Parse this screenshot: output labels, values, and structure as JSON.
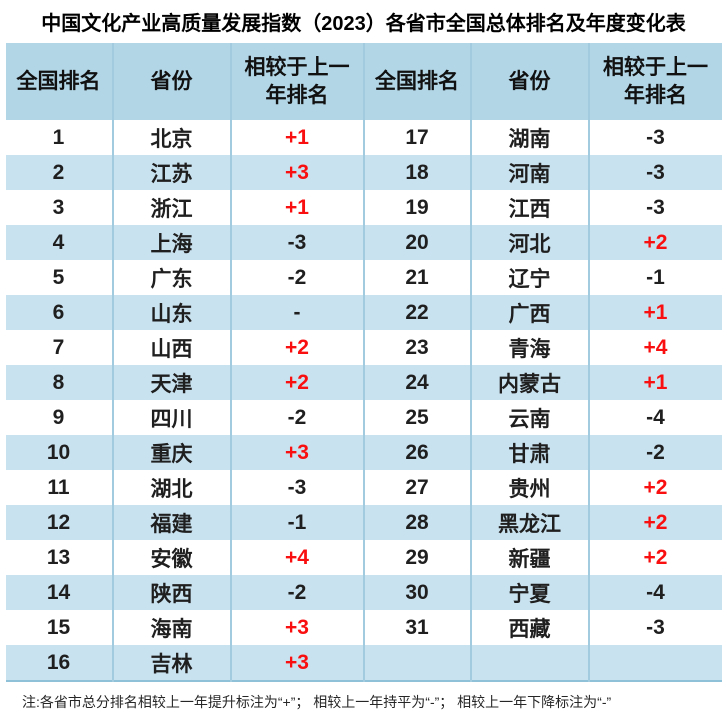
{
  "title": "中国文化产业高质量发展指数（2023）各省市全国总体排名及年度变化表",
  "note": "注:各省市总分排名相较上一年提升标注为“+”； 相较上一年持平为“-”； 相较上一年下降标注为“-”",
  "colors": {
    "header_bg": "#b2d6e6",
    "row_alt_bg": "#c9e2ef",
    "divider": "#a3cbdf",
    "divider_strong": "#8fc2d8",
    "positive_change": "#f90f0f",
    "text": "#1f1f1f"
  },
  "chart_data": {
    "type": "table",
    "title": "中国文化产业高质量发展指数（2023）各省市全国总体排名及年度变化表",
    "columns": [
      "全国排名",
      "省份",
      "相较于上一年排名"
    ],
    "layout": "two-column-split, ranks 1-16 left, ranks 17-31 right, alternating row shading",
    "rows": [
      [
        "1",
        "北京",
        "+1"
      ],
      [
        "2",
        "江苏",
        "+3"
      ],
      [
        "3",
        "浙江",
        "+1"
      ],
      [
        "4",
        "上海",
        "-3"
      ],
      [
        "5",
        "广东",
        "-2"
      ],
      [
        "6",
        "山东",
        "-"
      ],
      [
        "7",
        "山西",
        "+2"
      ],
      [
        "8",
        "天津",
        "+2"
      ],
      [
        "9",
        "四川",
        "-2"
      ],
      [
        "10",
        "重庆",
        "+3"
      ],
      [
        "11",
        "湖北",
        "-3"
      ],
      [
        "12",
        "福建",
        "-1"
      ],
      [
        "13",
        "安徽",
        "+4"
      ],
      [
        "14",
        "陕西",
        "-2"
      ],
      [
        "15",
        "海南",
        "+3"
      ],
      [
        "16",
        "吉林",
        "+3"
      ],
      [
        "17",
        "湖南",
        "-3"
      ],
      [
        "18",
        "河南",
        "-3"
      ],
      [
        "19",
        "江西",
        "-3"
      ],
      [
        "20",
        "河北",
        "+2"
      ],
      [
        "21",
        "辽宁",
        "-1"
      ],
      [
        "22",
        "广西",
        "+1"
      ],
      [
        "23",
        "青海",
        "+4"
      ],
      [
        "24",
        "内蒙古",
        "+1"
      ],
      [
        "25",
        "云南",
        "-4"
      ],
      [
        "26",
        "甘肃",
        "-2"
      ],
      [
        "27",
        "贵州",
        "+2"
      ],
      [
        "28",
        "黑龙江",
        "+2"
      ],
      [
        "29",
        "新疆",
        "+2"
      ],
      [
        "30",
        "宁夏",
        "-4"
      ],
      [
        "31",
        "西藏",
        "-3"
      ]
    ],
    "note": "注:各省市总分排名相较上一年提升标注为“+”； 相较上一年持平为“-”； 相较上一年下降标注为“-”"
  }
}
